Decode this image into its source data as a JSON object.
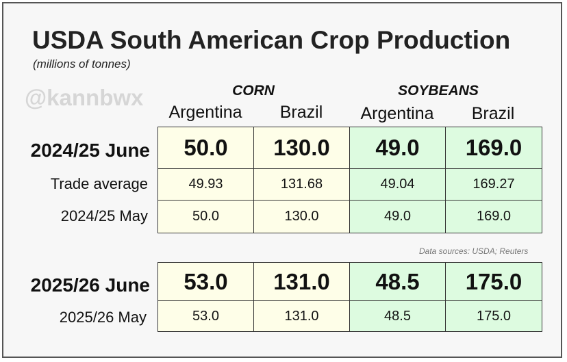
{
  "title": "USDA South American Crop Production",
  "subtitle": "(millions of tonnes)",
  "watermark": "@kannbwx",
  "groups": {
    "corn": "CORN",
    "soybeans": "SOYBEANS"
  },
  "columns": [
    "Argentina",
    "Brazil",
    "Argentina",
    "Brazil"
  ],
  "source": "Data sources: USDA; Reuters",
  "table1": {
    "rows": [
      {
        "label": "2024/25 June",
        "values": [
          "50.0",
          "130.0",
          "49.0",
          "169.0"
        ]
      },
      {
        "label": "Trade average",
        "values": [
          "49.93",
          "131.68",
          "49.04",
          "169.27"
        ]
      },
      {
        "label": "2024/25 May",
        "values": [
          "50.0",
          "130.0",
          "49.0",
          "169.0"
        ]
      }
    ]
  },
  "table2": {
    "rows": [
      {
        "label": "2025/26 June",
        "values": [
          "53.0",
          "131.0",
          "48.5",
          "175.0"
        ]
      },
      {
        "label": "2025/26 May",
        "values": [
          "53.0",
          "131.0",
          "48.5",
          "175.0"
        ]
      }
    ]
  },
  "colors": {
    "corn_fill": "#fefee8",
    "soy_fill": "#ddfbe0",
    "border": "#333333"
  }
}
